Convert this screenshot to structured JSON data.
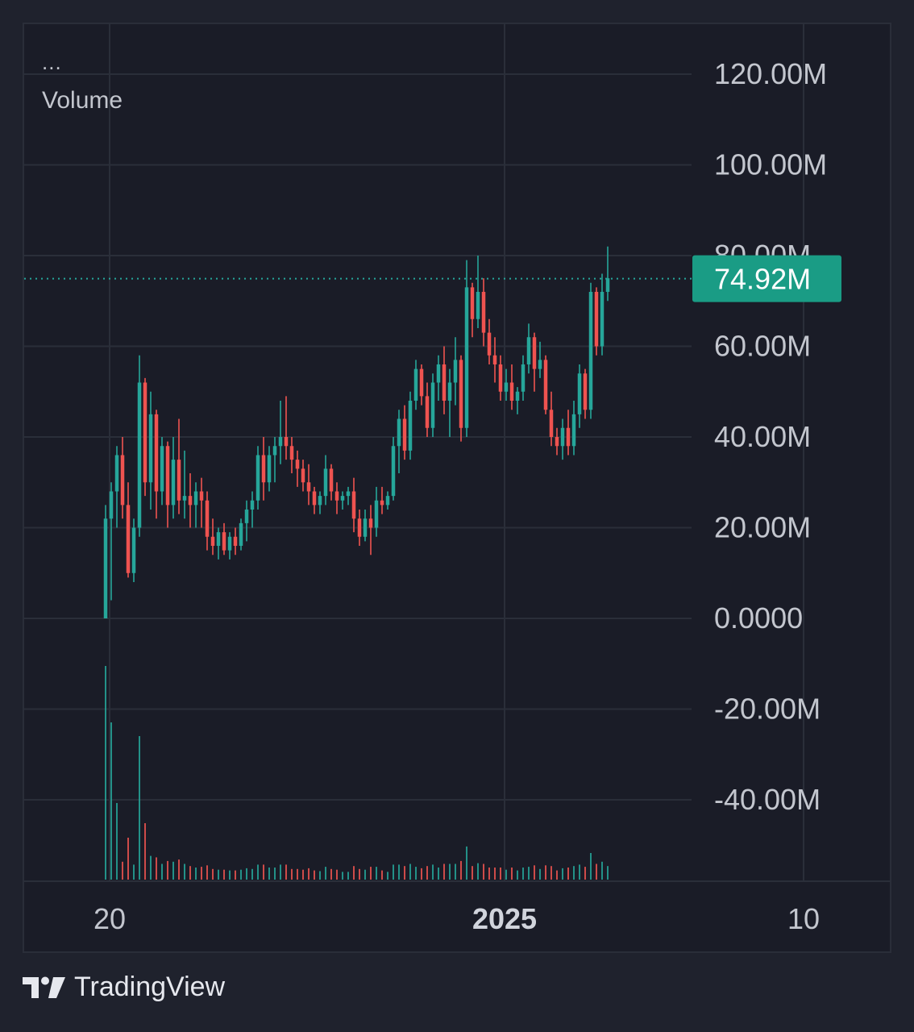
{
  "legend": {
    "dots": "...",
    "title": "Volume"
  },
  "brand": {
    "name": "TradingView",
    "logo_icon": "tradingview-logo-icon"
  },
  "colors": {
    "background": "#1a1c27",
    "grid": "#2a2e39",
    "up": "#26a69a",
    "down": "#ef5350",
    "label_text": "#c3c6ce",
    "last_value_bg": "#1a9c85"
  },
  "chart_data": {
    "type": "candlestick",
    "title": "Volume",
    "ylim": [
      -55000000,
      125000000
    ],
    "y_ticks": [
      {
        "value": 120000000,
        "label": "120.00M"
      },
      {
        "value": 100000000,
        "label": "100.00M"
      },
      {
        "value": 80000000,
        "label": "80.00M"
      },
      {
        "value": 60000000,
        "label": "60.00M"
      },
      {
        "value": 40000000,
        "label": "40.00M"
      },
      {
        "value": 20000000,
        "label": "20.00M"
      },
      {
        "value": 0,
        "label": "0.0000"
      },
      {
        "value": -20000000,
        "label": "-20.00M"
      },
      {
        "value": -40000000,
        "label": "-40.00M"
      }
    ],
    "x_ticks": [
      {
        "index": 1,
        "label": "20",
        "bold": false
      },
      {
        "index": 71,
        "label": "2025",
        "bold": true
      },
      {
        "index": 124,
        "label": "10",
        "bold": false
      }
    ],
    "last_value": {
      "value": 74920000,
      "label": "74.92M"
    },
    "candles": [
      [
        0,
        25,
        0,
        22
      ],
      [
        22,
        30,
        4,
        28
      ],
      [
        28,
        38,
        20,
        36
      ],
      [
        36,
        40,
        22,
        25
      ],
      [
        25,
        30,
        9,
        10
      ],
      [
        10,
        22,
        8,
        20
      ],
      [
        20,
        58,
        18,
        52
      ],
      [
        52,
        53,
        27,
        30
      ],
      [
        30,
        50,
        24,
        45
      ],
      [
        45,
        46,
        22,
        28
      ],
      [
        28,
        40,
        25,
        38
      ],
      [
        38,
        39,
        20,
        25
      ],
      [
        25,
        40,
        22,
        35
      ],
      [
        35,
        44,
        23,
        26
      ],
      [
        26,
        37,
        22,
        27
      ],
      [
        27,
        32,
        20,
        25
      ],
      [
        25,
        30,
        20,
        28
      ],
      [
        28,
        31,
        20,
        26
      ],
      [
        26,
        28,
        15,
        18
      ],
      [
        18,
        22,
        14,
        16
      ],
      [
        16,
        20,
        13,
        19
      ],
      [
        19,
        21,
        14,
        15
      ],
      [
        15,
        19,
        13,
        18
      ],
      [
        18,
        20,
        14,
        16
      ],
      [
        16,
        22,
        15,
        21
      ],
      [
        21,
        26,
        17,
        24
      ],
      [
        24,
        28,
        20,
        26
      ],
      [
        26,
        38,
        24,
        36
      ],
      [
        36,
        40,
        26,
        30
      ],
      [
        30,
        38,
        28,
        36
      ],
      [
        36,
        40,
        30,
        38
      ],
      [
        38,
        48,
        34,
        40
      ],
      [
        40,
        49,
        35,
        38
      ],
      [
        38,
        40,
        32,
        35
      ],
      [
        35,
        37,
        29,
        33
      ],
      [
        33,
        35,
        28,
        30
      ],
      [
        30,
        34,
        25,
        28
      ],
      [
        28,
        29,
        23,
        25
      ],
      [
        25,
        28,
        23,
        27
      ],
      [
        27,
        36,
        25,
        33
      ],
      [
        33,
        34,
        26,
        28
      ],
      [
        28,
        30,
        23,
        26
      ],
      [
        26,
        28,
        24,
        27
      ],
      [
        27,
        29,
        25,
        28
      ],
      [
        28,
        31,
        19,
        22
      ],
      [
        22,
        24,
        16,
        18
      ],
      [
        18,
        24,
        17,
        22
      ],
      [
        22,
        25,
        14,
        20
      ],
      [
        20,
        29,
        18,
        26
      ],
      [
        26,
        29,
        23,
        25
      ],
      [
        25,
        28,
        24,
        27
      ],
      [
        27,
        40,
        26,
        38
      ],
      [
        38,
        46,
        32,
        44
      ],
      [
        44,
        47,
        35,
        37
      ],
      [
        37,
        50,
        35,
        48
      ],
      [
        48,
        57,
        46,
        55
      ],
      [
        55,
        56,
        47,
        49
      ],
      [
        49,
        52,
        40,
        42
      ],
      [
        42,
        54,
        40,
        52
      ],
      [
        52,
        58,
        48,
        56
      ],
      [
        56,
        60,
        45,
        48
      ],
      [
        48,
        55,
        40,
        52
      ],
      [
        52,
        62,
        47,
        57
      ],
      [
        57,
        58,
        39,
        42
      ],
      [
        42,
        79,
        40,
        73
      ],
      [
        73,
        74,
        62,
        66
      ],
      [
        66,
        80,
        64,
        72
      ],
      [
        72,
        75,
        60,
        63
      ],
      [
        63,
        66,
        56,
        58
      ],
      [
        58,
        62,
        52,
        56
      ],
      [
        56,
        58,
        48,
        50
      ],
      [
        50,
        55,
        48,
        52
      ],
      [
        52,
        56,
        46,
        48
      ],
      [
        48,
        51,
        45,
        50
      ],
      [
        50,
        58,
        48,
        56
      ],
      [
        56,
        65,
        54,
        62
      ],
      [
        62,
        63,
        50,
        55
      ],
      [
        55,
        61,
        53,
        57
      ],
      [
        57,
        58,
        45,
        46
      ],
      [
        46,
        50,
        38,
        40
      ],
      [
        40,
        42,
        36,
        38
      ],
      [
        38,
        44,
        35,
        42
      ],
      [
        42,
        46,
        36,
        38
      ],
      [
        38,
        48,
        36,
        45
      ],
      [
        45,
        56,
        42,
        54
      ],
      [
        54,
        55,
        44,
        46
      ],
      [
        46,
        74,
        44,
        72
      ],
      [
        72,
        73,
        58,
        60
      ],
      [
        60,
        76,
        58,
        72
      ],
      [
        72,
        82,
        70,
        75
      ]
    ]
  }
}
